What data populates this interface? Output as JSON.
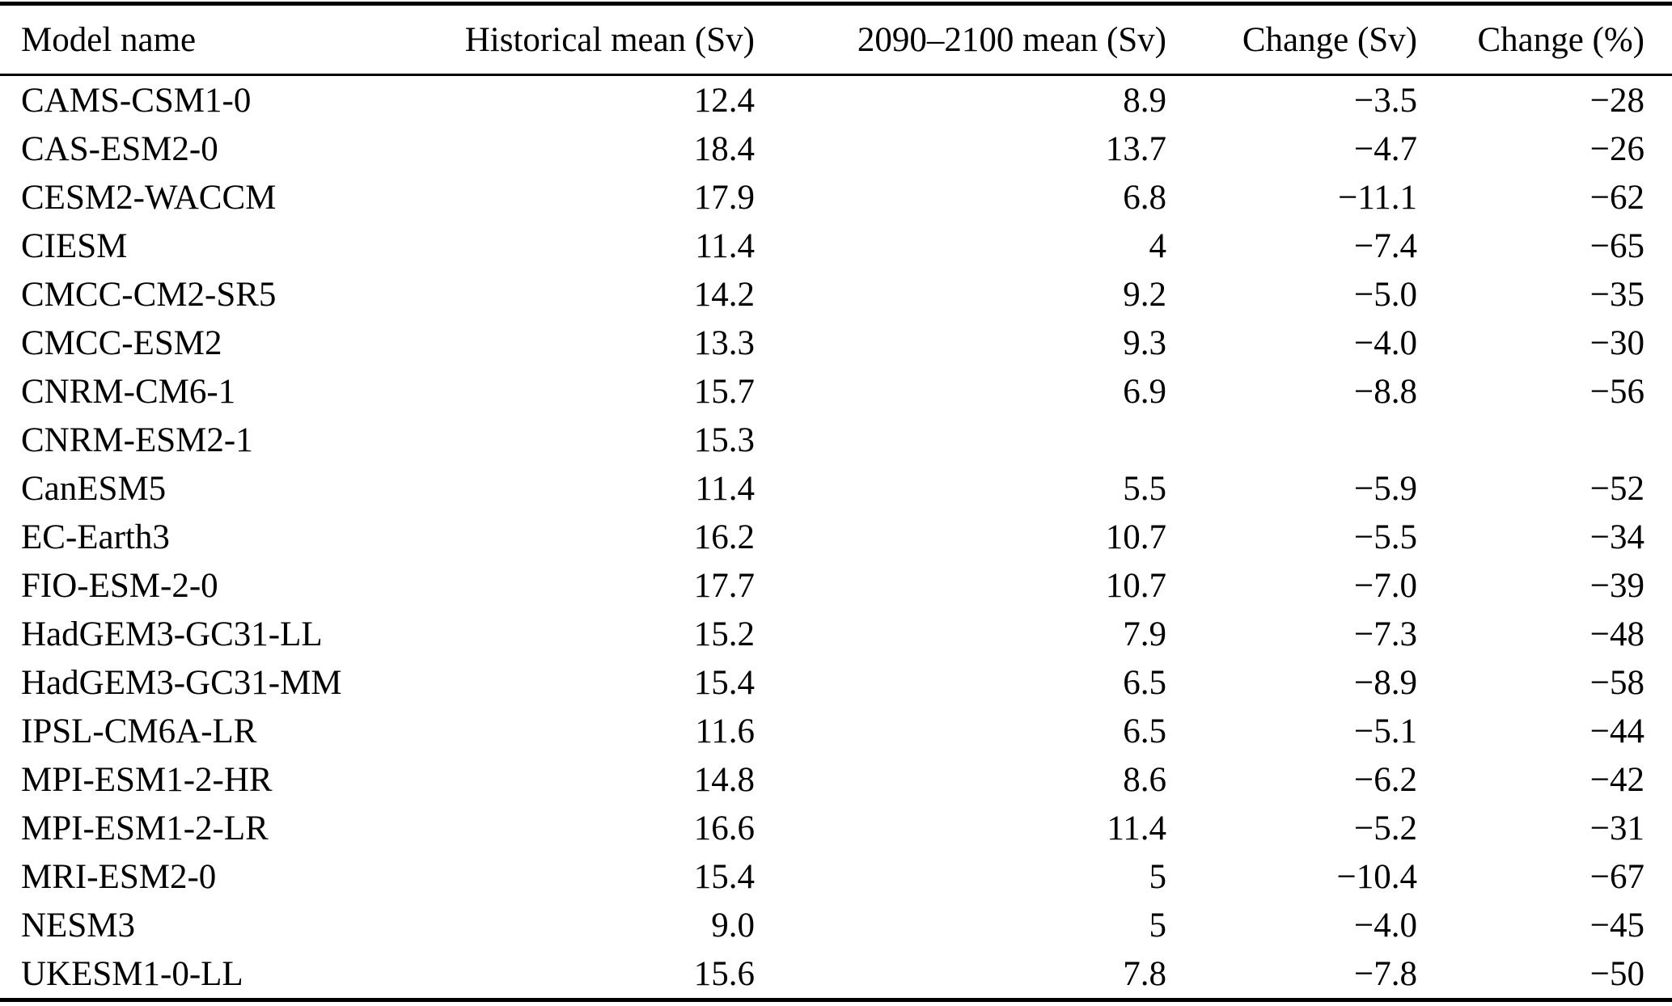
{
  "colors": {
    "text": "#000000",
    "background": "#ffffff",
    "rule": "#000000"
  },
  "table": {
    "columns": [
      {
        "label": "Model name",
        "align": "left"
      },
      {
        "label": "Historical mean (Sv)",
        "align": "right"
      },
      {
        "label": "2090–2100 mean (Sv)",
        "align": "right"
      },
      {
        "label": "Change (Sv)",
        "align": "right"
      },
      {
        "label": "Change (%)",
        "align": "right"
      }
    ],
    "rows": [
      [
        "CAMS-CSM1-0",
        "12.4",
        "8.9",
        "−3.5",
        "−28"
      ],
      [
        "CAS-ESM2-0",
        "18.4",
        "13.7",
        "−4.7",
        "−26"
      ],
      [
        "CESM2-WACCM",
        "17.9",
        "6.8",
        "−11.1",
        "−62"
      ],
      [
        "CIESM",
        "11.4",
        "4",
        "−7.4",
        "−65"
      ],
      [
        "CMCC-CM2-SR5",
        "14.2",
        "9.2",
        "−5.0",
        "−35"
      ],
      [
        "CMCC-ESM2",
        "13.3",
        "9.3",
        "−4.0",
        "−30"
      ],
      [
        "CNRM-CM6-1",
        "15.7",
        "6.9",
        "−8.8",
        "−56"
      ],
      [
        "CNRM-ESM2-1",
        "15.3",
        "",
        "",
        ""
      ],
      [
        "CanESM5",
        "11.4",
        "5.5",
        "−5.9",
        "−52"
      ],
      [
        "EC-Earth3",
        "16.2",
        "10.7",
        "−5.5",
        "−34"
      ],
      [
        "FIO-ESM-2-0",
        "17.7",
        "10.7",
        "−7.0",
        "−39"
      ],
      [
        "HadGEM3-GC31-LL",
        "15.2",
        "7.9",
        "−7.3",
        "−48"
      ],
      [
        "HadGEM3-GC31-MM",
        "15.4",
        "6.5",
        "−8.9",
        "−58"
      ],
      [
        "IPSL-CM6A-LR",
        "11.6",
        "6.5",
        "−5.1",
        "−44"
      ],
      [
        "MPI-ESM1-2-HR",
        "14.8",
        "8.6",
        "−6.2",
        "−42"
      ],
      [
        "MPI-ESM1-2-LR",
        "16.6",
        "11.4",
        "−5.2",
        "−31"
      ],
      [
        "MRI-ESM2-0",
        "15.4",
        "5",
        "−10.4",
        "−67"
      ],
      [
        "NESM3",
        "9.0",
        "5",
        "−4.0",
        "−45"
      ],
      [
        "UKESM1-0-LL",
        "15.6",
        "7.8",
        "−7.8",
        "−50"
      ]
    ]
  }
}
